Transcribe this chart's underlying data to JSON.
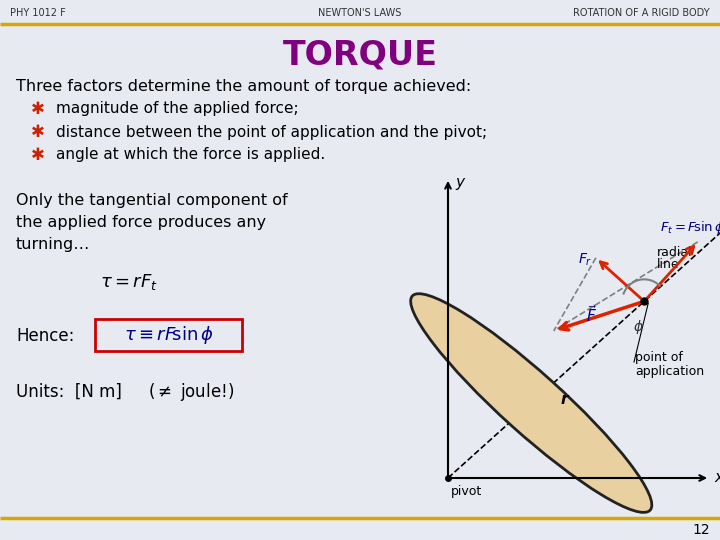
{
  "bg_color": "#e8eaf2",
  "header_line_color": "#d4aa00",
  "header_left": "PHY 1012 F",
  "header_center": "NEWTON'S LAWS",
  "header_right": "ROTATION OF A RIGID BODY",
  "title": "TORQUE",
  "title_color": "#800080",
  "body_text_color": "#000000",
  "bullet_color": "#cc2200",
  "formula_color": "#000080",
  "arrow_color": "#dd2200",
  "slide_number": "12",
  "footer_line_color": "#d4aa00"
}
